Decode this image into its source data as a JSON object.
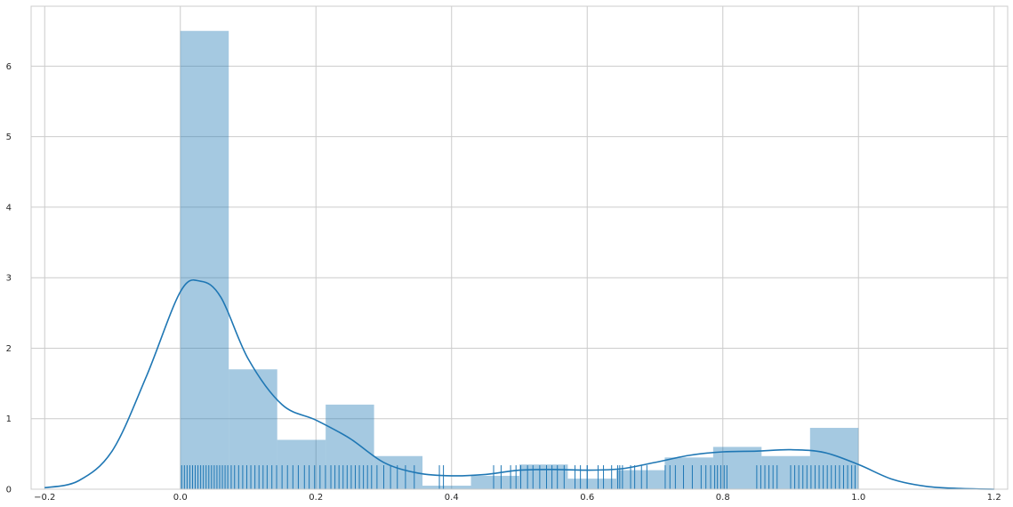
{
  "chart_data": {
    "type": "histogram",
    "title": "",
    "xlabel": "",
    "ylabel": "",
    "xlim": [
      -0.22,
      1.22
    ],
    "ylim": [
      0,
      6.85
    ],
    "xticks": [
      -0.2,
      0.0,
      0.2,
      0.4,
      0.6,
      0.8,
      1.0,
      1.2
    ],
    "xtick_labels": [
      "−0.2",
      "0.0",
      "0.2",
      "0.4",
      "0.6",
      "0.8",
      "1.0",
      "1.2"
    ],
    "yticks": [
      0,
      1,
      2,
      3,
      4,
      5,
      6
    ],
    "ytick_labels": [
      "0",
      "1",
      "2",
      "3",
      "4",
      "5",
      "6"
    ],
    "grid": true,
    "colors": {
      "bar_fill": "#1f77b4",
      "kde_line": "#1f77b4",
      "rug": "#1f77b4",
      "grid": "#cccccc",
      "frame": "#cccccc"
    },
    "histogram": {
      "bin_edges": [
        0.0,
        0.0714,
        0.1429,
        0.2143,
        0.2857,
        0.3571,
        0.4286,
        0.5,
        0.5714,
        0.6429,
        0.7143,
        0.7857,
        0.8571,
        0.9286,
        1.0
      ],
      "densities": [
        6.5,
        1.7,
        0.7,
        1.2,
        0.47,
        0.05,
        0.19,
        0.35,
        0.15,
        0.27,
        0.45,
        0.6,
        0.47,
        0.87
      ]
    },
    "kde": {
      "x": [
        -0.2,
        -0.15,
        -0.1,
        -0.05,
        0.0,
        0.03,
        0.06,
        0.1,
        0.15,
        0.2,
        0.25,
        0.3,
        0.35,
        0.4,
        0.45,
        0.5,
        0.55,
        0.6,
        0.65,
        0.7,
        0.75,
        0.8,
        0.85,
        0.9,
        0.95,
        1.0,
        1.05,
        1.1,
        1.15,
        1.2
      ],
      "y": [
        0.02,
        0.12,
        0.55,
        1.6,
        2.8,
        2.95,
        2.72,
        1.85,
        1.2,
        0.98,
        0.72,
        0.38,
        0.23,
        0.19,
        0.21,
        0.27,
        0.28,
        0.27,
        0.29,
        0.38,
        0.48,
        0.53,
        0.54,
        0.56,
        0.52,
        0.35,
        0.14,
        0.04,
        0.01,
        0.0
      ]
    },
    "rug": {
      "height": 0.34,
      "values": [
        0.002,
        0.006,
        0.01,
        0.014,
        0.018,
        0.022,
        0.026,
        0.03,
        0.034,
        0.038,
        0.042,
        0.046,
        0.05,
        0.054,
        0.058,
        0.062,
        0.066,
        0.07,
        0.075,
        0.08,
        0.086,
        0.092,
        0.098,
        0.104,
        0.11,
        0.116,
        0.122,
        0.128,
        0.135,
        0.142,
        0.15,
        0.158,
        0.166,
        0.174,
        0.183,
        0.19,
        0.198,
        0.206,
        0.214,
        0.222,
        0.228,
        0.234,
        0.24,
        0.246,
        0.252,
        0.258,
        0.264,
        0.27,
        0.276,
        0.282,
        0.29,
        0.3,
        0.31,
        0.32,
        0.332,
        0.345,
        0.382,
        0.388,
        0.462,
        0.473,
        0.487,
        0.495,
        0.502,
        0.512,
        0.52,
        0.53,
        0.54,
        0.548,
        0.556,
        0.566,
        0.582,
        0.59,
        0.6,
        0.6,
        0.616,
        0.624,
        0.636,
        0.645,
        0.648,
        0.652,
        0.664,
        0.67,
        0.68,
        0.688,
        0.715,
        0.722,
        0.73,
        0.742,
        0.755,
        0.768,
        0.775,
        0.782,
        0.788,
        0.792,
        0.797,
        0.802,
        0.806,
        0.85,
        0.856,
        0.862,
        0.868,
        0.874,
        0.88,
        0.9,
        0.906,
        0.912,
        0.918,
        0.924,
        0.93,
        0.936,
        0.942,
        0.948,
        0.954,
        0.96,
        0.966,
        0.972,
        0.978,
        0.984,
        0.99,
        0.995
      ]
    }
  }
}
